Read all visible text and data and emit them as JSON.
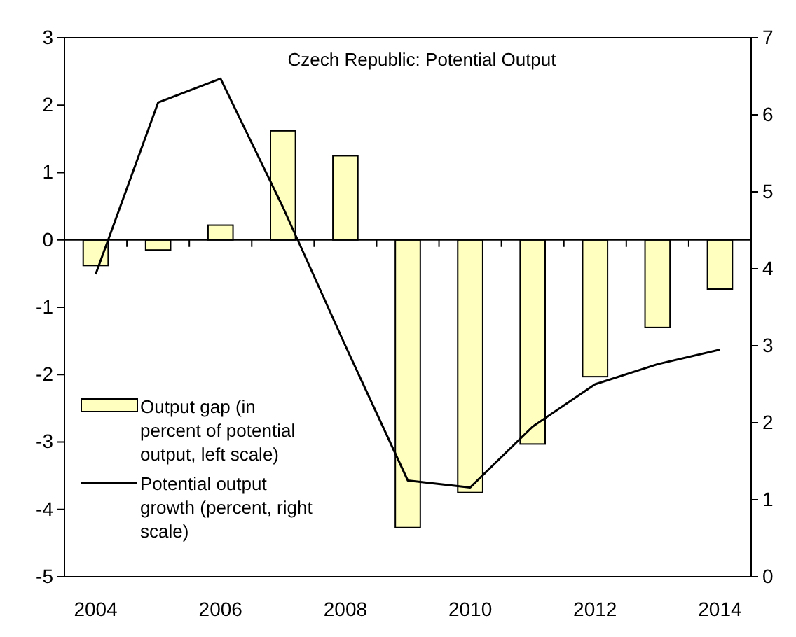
{
  "chart_data": {
    "type": "bar",
    "title": "Czech Republic: Potential Output",
    "x": [
      2004,
      2005,
      2006,
      2007,
      2008,
      2009,
      2010,
      2011,
      2012,
      2013,
      2014
    ],
    "xlim": [
      2003.5,
      2014.5
    ],
    "xticks": [
      2004,
      2006,
      2008,
      2010,
      2012,
      2014
    ],
    "ylim": [
      -5,
      3
    ],
    "yticks": [
      -5,
      -4,
      -3,
      -2,
      -1,
      0,
      1,
      2,
      3
    ],
    "y2lim": [
      0,
      7
    ],
    "y2ticks": [
      0,
      1,
      2,
      3,
      4,
      5,
      6,
      7
    ],
    "legend": "bottom left",
    "series": [
      {
        "name": "Output gap (in percent of potential output, left scale)",
        "color": "#ffffc0",
        "values": [
          -0.38,
          -0.15,
          0.22,
          1.62,
          1.25,
          -4.27,
          -3.75,
          -3.03,
          -2.03,
          -1.3,
          -0.73
        ]
      },
      {
        "name": "Potential output growth (percent, right scale)",
        "type": "line",
        "axis": "y2",
        "color": "#000000",
        "values": [
          3.93,
          6.16,
          6.47,
          4.8,
          3.0,
          1.25,
          1.16,
          1.95,
          2.5,
          2.76,
          2.95
        ]
      }
    ]
  }
}
